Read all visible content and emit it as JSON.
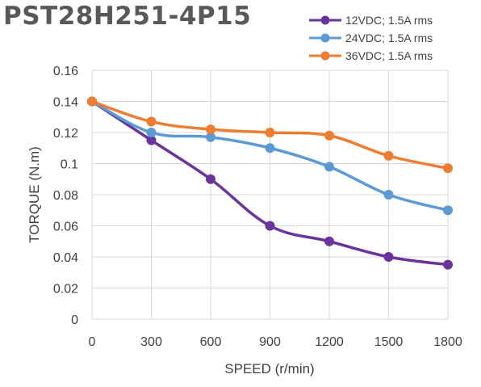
{
  "chart_data": {
    "type": "line",
    "title": "PST28H251-4P15",
    "xlabel": "SPEED (r/min)",
    "ylabel": "TORQUE (N.m)",
    "x": [
      0,
      300,
      600,
      900,
      1200,
      1500,
      1800
    ],
    "x_tick_labels": [
      "0",
      "300",
      "600",
      "900",
      "1200",
      "1500",
      "1800"
    ],
    "ylim": [
      0,
      0.16
    ],
    "y_ticks": [
      0,
      0.02,
      0.04,
      0.06,
      0.08,
      0.1,
      0.12,
      0.14,
      0.16
    ],
    "y_tick_labels": [
      "0",
      "0.02",
      "0.04",
      "0.06",
      "0.08",
      "0.1",
      "0.12",
      "0.14",
      "0.16"
    ],
    "grid": true,
    "legend_position": "top-right",
    "series": [
      {
        "name": "12VDC; 1.5A rms",
        "color": "#6a349a",
        "values": [
          0.14,
          0.115,
          0.09,
          0.06,
          0.05,
          0.04,
          0.035
        ]
      },
      {
        "name": "24VDC; 1.5A rms",
        "color": "#5b9bd5",
        "values": [
          0.14,
          0.12,
          0.117,
          0.11,
          0.098,
          0.08,
          0.07
        ]
      },
      {
        "name": "36VDC; 1.5A rms",
        "color": "#ed7d31",
        "values": [
          0.14,
          0.127,
          0.122,
          0.12,
          0.118,
          0.105,
          0.097
        ]
      }
    ]
  }
}
